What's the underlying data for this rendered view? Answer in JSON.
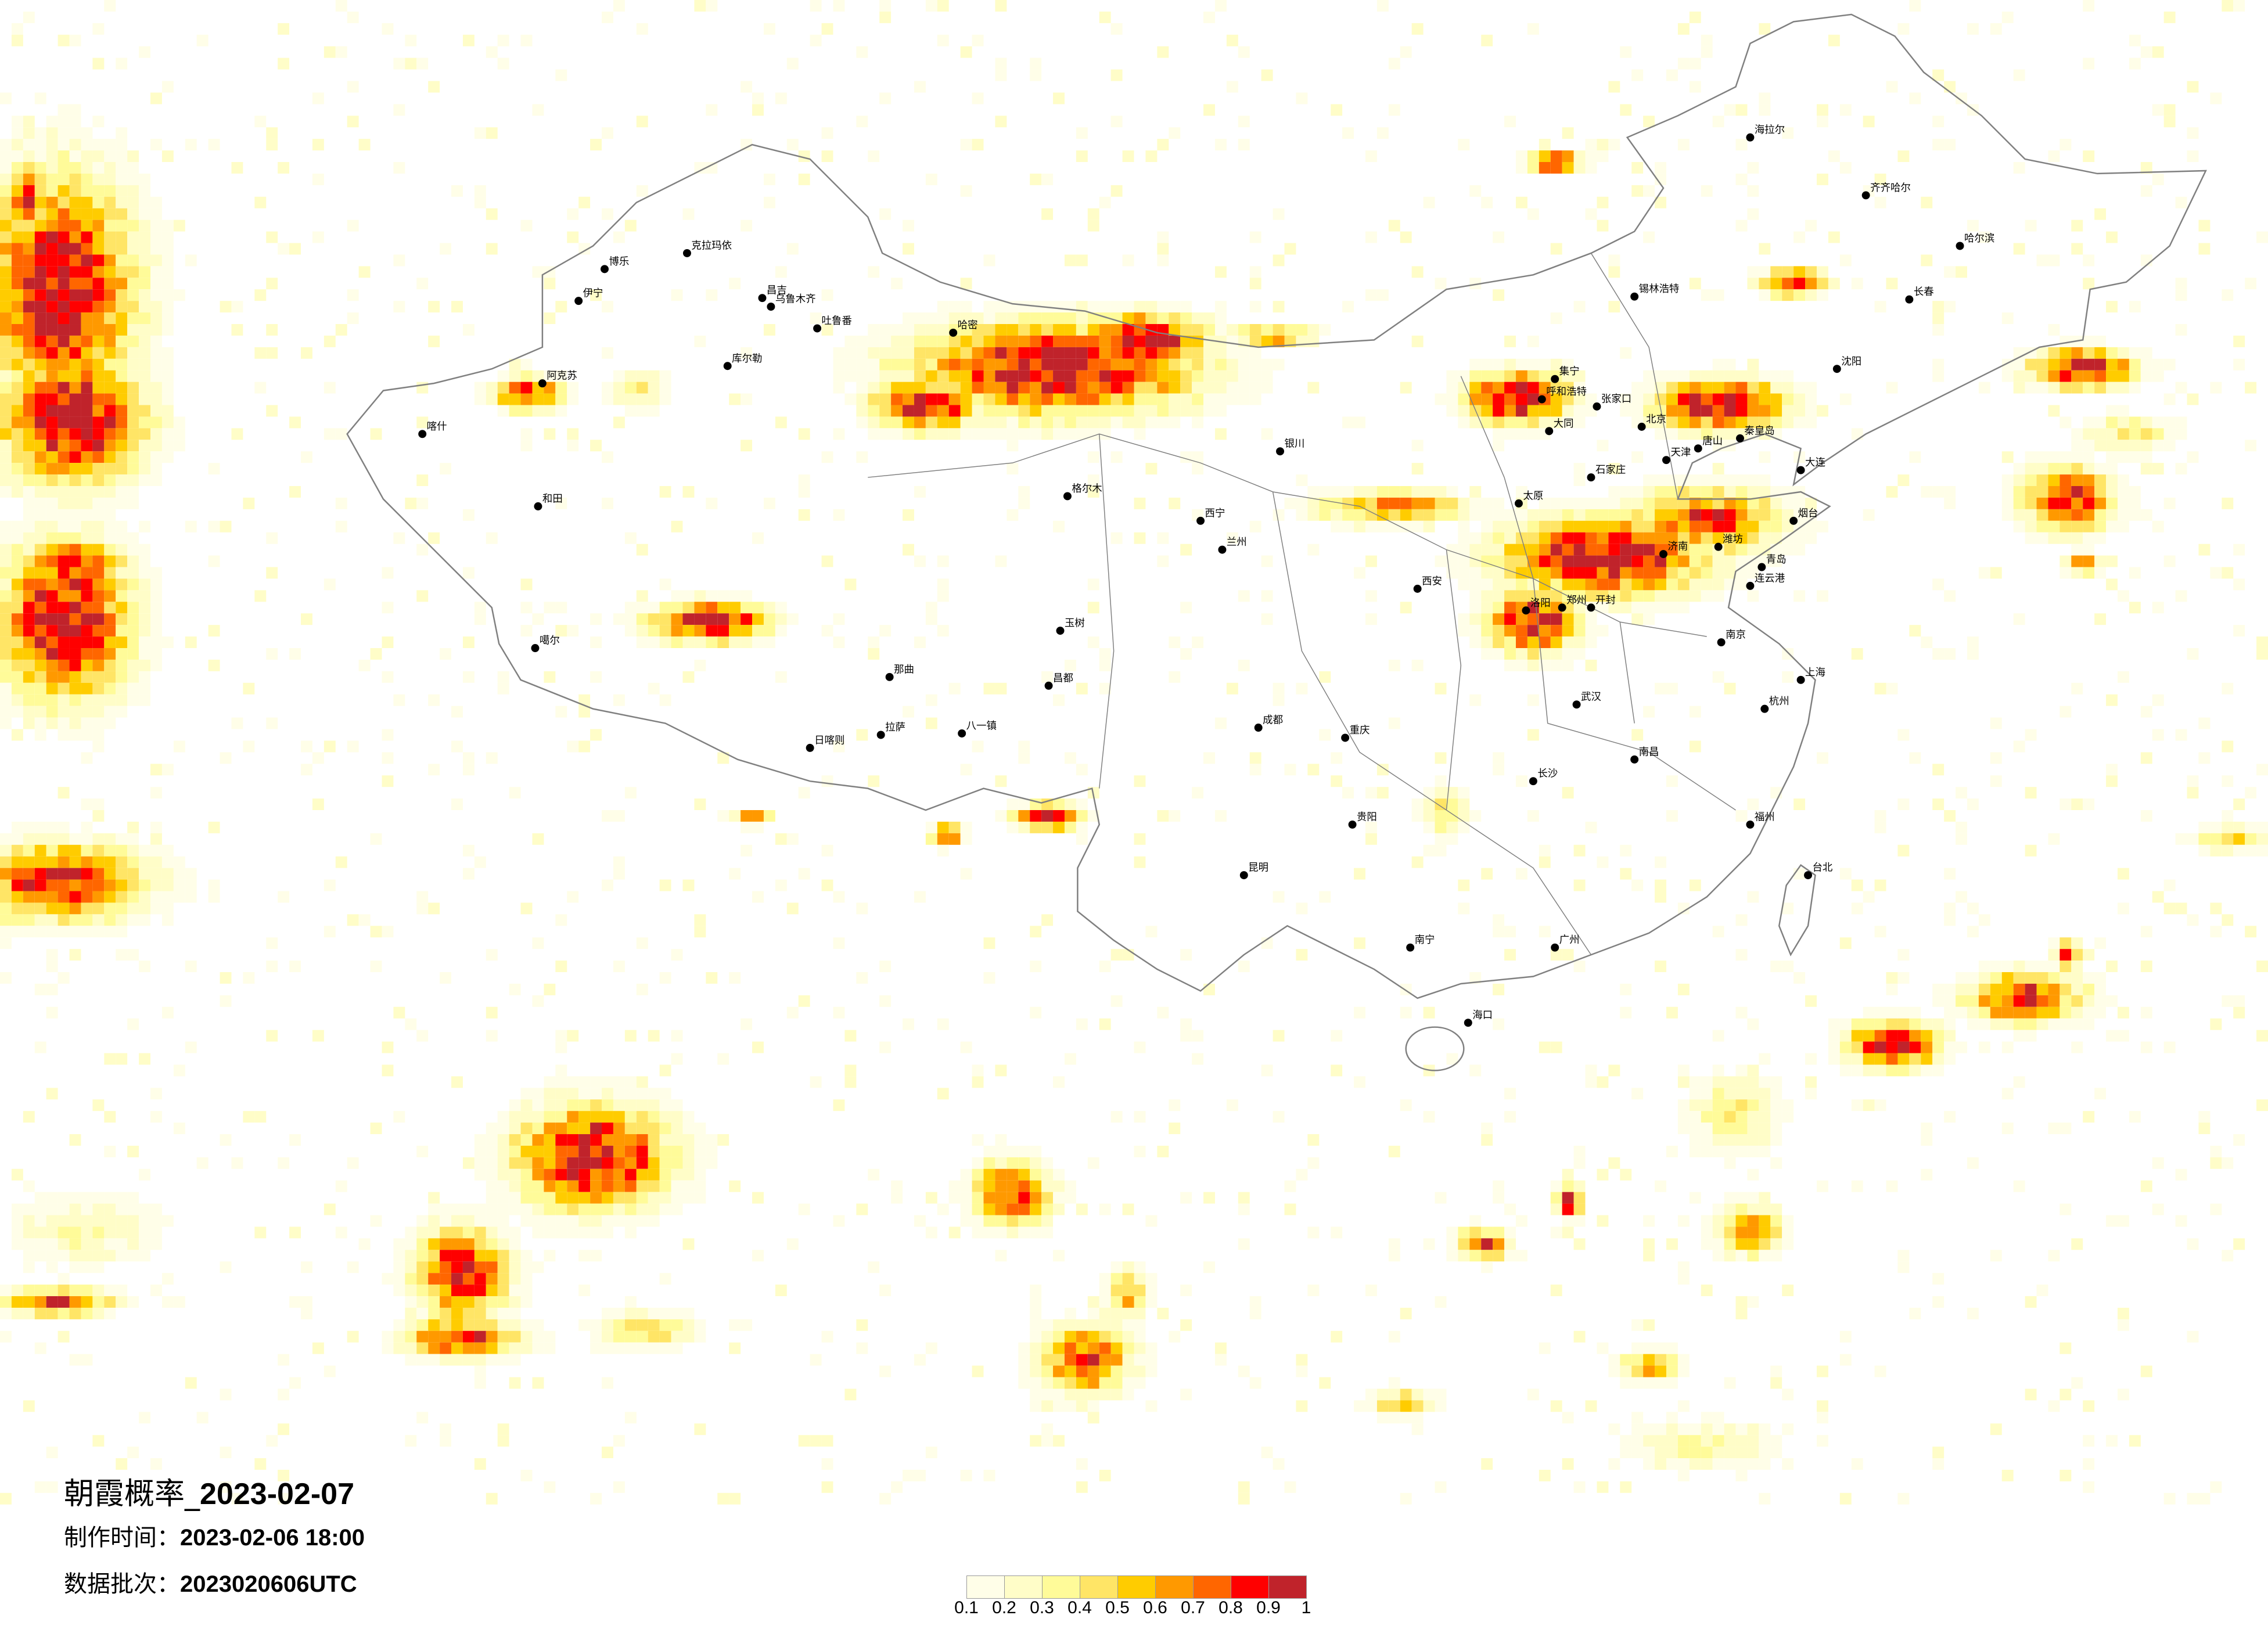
{
  "title": {
    "prefix": "朝霞概率_",
    "date": "2023-02-07"
  },
  "production_time": {
    "label": "制作时间：",
    "value": "2023-02-06 18:00"
  },
  "data_batch": {
    "label": "数据批次：",
    "value": "2023020606UTC"
  },
  "legend": {
    "colors": [
      "#FFFEE8",
      "#FFFDC8",
      "#FFFB99",
      "#FFE566",
      "#FFCC00",
      "#FF9900",
      "#FF6600",
      "#FF0000",
      "#C0232B"
    ],
    "labels": [
      "0.1",
      "0.2",
      "0.3",
      "0.4",
      "0.5",
      "0.6",
      "0.7",
      "0.8",
      "0.9",
      "1"
    ]
  },
  "map": {
    "border_color": "#808080",
    "city_dot_color": "#000000",
    "cities": [
      "克拉玛依",
      "博乐",
      "伊宁",
      "昌吉",
      "乌鲁木齐",
      "吐鲁番",
      "哈密",
      "库尔勒",
      "阿克苏",
      "喀什",
      "和田",
      "噶尔",
      "日喀则",
      "拉萨",
      "八一镇",
      "那曲",
      "昌都",
      "玉树",
      "格尔木",
      "西宁",
      "兰州",
      "银川",
      "呼和浩特",
      "集宁",
      "大同",
      "张家口",
      "北京",
      "天津",
      "唐山",
      "秦皇岛",
      "石家庄",
      "太原",
      "济南",
      "青岛",
      "烟台",
      "潍坊",
      "郑州",
      "开封",
      "洛阳",
      "西安",
      "成都",
      "重庆",
      "武汉",
      "南京",
      "上海",
      "杭州",
      "长沙",
      "南昌",
      "福州",
      "台北",
      "广州",
      "南宁",
      "海口",
      "昆明",
      "贵阳",
      "沈阳",
      "大连",
      "长春",
      "哈尔滨",
      "齐齐哈尔",
      "海拉尔",
      "锡林浩特",
      "连云港"
    ]
  }
}
